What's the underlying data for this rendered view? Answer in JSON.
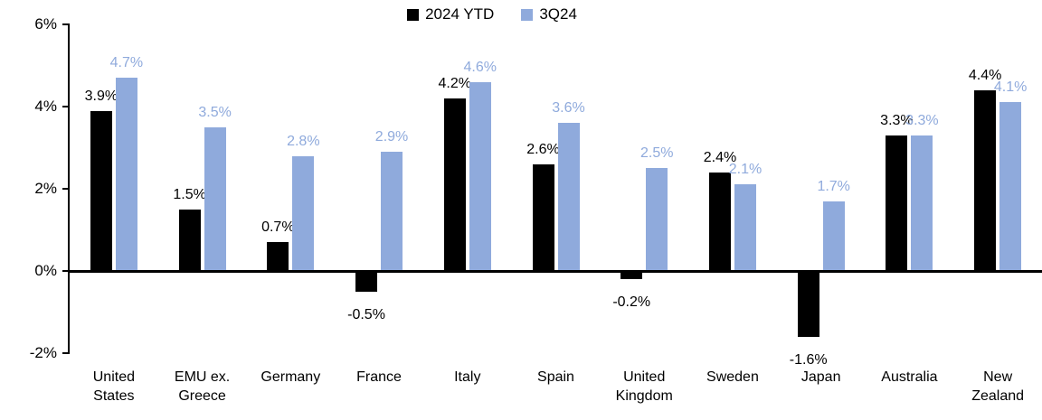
{
  "chart_data": {
    "type": "bar",
    "categories": [
      "United States",
      "EMU ex. Greece",
      "Germany",
      "France",
      "Italy",
      "Spain",
      "United Kingdom",
      "Sweden",
      "Japan",
      "Australia",
      "New Zealand"
    ],
    "series": [
      {
        "name": "2024 YTD",
        "color": "#000000",
        "values": [
          3.9,
          1.5,
          0.7,
          -0.5,
          4.2,
          2.6,
          -0.2,
          2.4,
          -1.6,
          3.3,
          4.4
        ]
      },
      {
        "name": "3Q24",
        "color": "#8FAADC",
        "values": [
          4.7,
          3.5,
          2.8,
          2.9,
          4.6,
          3.6,
          2.5,
          2.1,
          1.7,
          3.3,
          4.1
        ]
      }
    ],
    "data_labels": {
      "format": "one_decimal_percent",
      "series_label_colors": [
        "#000000",
        "#8FAADC"
      ]
    },
    "y_axis": {
      "ticks": [
        "6%",
        "4%",
        "2%",
        "0%",
        "-2%"
      ],
      "tick_values": [
        6,
        4,
        2,
        0,
        -2
      ],
      "ylim": [
        -2,
        6
      ],
      "grid": "off"
    },
    "legend": {
      "position": "top-center",
      "entries": [
        "2024 YTD",
        "3Q24"
      ]
    },
    "title": "",
    "xlabel": "",
    "ylabel": ""
  }
}
